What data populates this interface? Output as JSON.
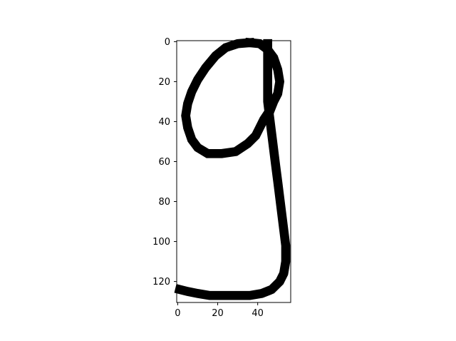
{
  "chart_data": {
    "type": "heatmap",
    "title": "",
    "xlabel": "",
    "ylabel": "",
    "xlim": [
      -0.5,
      56.5
    ],
    "ylim": [
      130.5,
      -0.5
    ],
    "x_ticks": [
      0,
      20,
      40
    ],
    "y_ticks": [
      0,
      20,
      40,
      60,
      80,
      100,
      120
    ],
    "grid": false,
    "colormap": [
      "#ffffff",
      "#000000"
    ],
    "stroke": [
      [
        [
          36,
          0.5
        ],
        [
          30,
          1
        ],
        [
          24,
          3
        ],
        [
          19,
          7
        ],
        [
          14,
          13
        ],
        [
          10,
          19
        ],
        [
          7,
          25
        ],
        [
          5,
          31
        ],
        [
          4,
          37
        ],
        [
          5,
          43
        ],
        [
          7,
          49
        ],
        [
          10,
          53
        ],
        [
          15,
          56
        ],
        [
          22,
          56
        ],
        [
          29,
          55
        ],
        [
          35,
          51
        ],
        [
          39,
          47
        ],
        [
          41,
          43
        ],
        [
          43,
          39
        ],
        [
          45,
          36
        ]
      ],
      [
        [
          36,
          0.5
        ],
        [
          41,
          1
        ],
        [
          45,
          4
        ],
        [
          48,
          8
        ],
        [
          50,
          14
        ],
        [
          51,
          20
        ],
        [
          50,
          26
        ],
        [
          48,
          30
        ],
        [
          46,
          35
        ]
      ],
      [
        [
          45,
          1
        ],
        [
          45,
          10
        ],
        [
          45,
          20
        ],
        [
          45,
          30
        ],
        [
          46,
          38
        ],
        [
          47,
          46
        ],
        [
          48,
          54
        ],
        [
          49,
          62
        ],
        [
          50,
          70
        ],
        [
          51,
          78
        ],
        [
          52,
          86
        ],
        [
          53,
          94
        ],
        [
          54,
          102
        ],
        [
          54,
          110
        ],
        [
          53,
          116
        ],
        [
          51,
          120
        ],
        [
          47,
          124
        ],
        [
          42,
          126
        ],
        [
          36,
          127
        ],
        [
          29,
          127
        ],
        [
          22,
          127
        ],
        [
          16,
          127
        ],
        [
          10,
          126
        ],
        [
          5,
          125
        ],
        [
          1,
          124
        ]
      ]
    ],
    "stroke_width": 4.5
  }
}
